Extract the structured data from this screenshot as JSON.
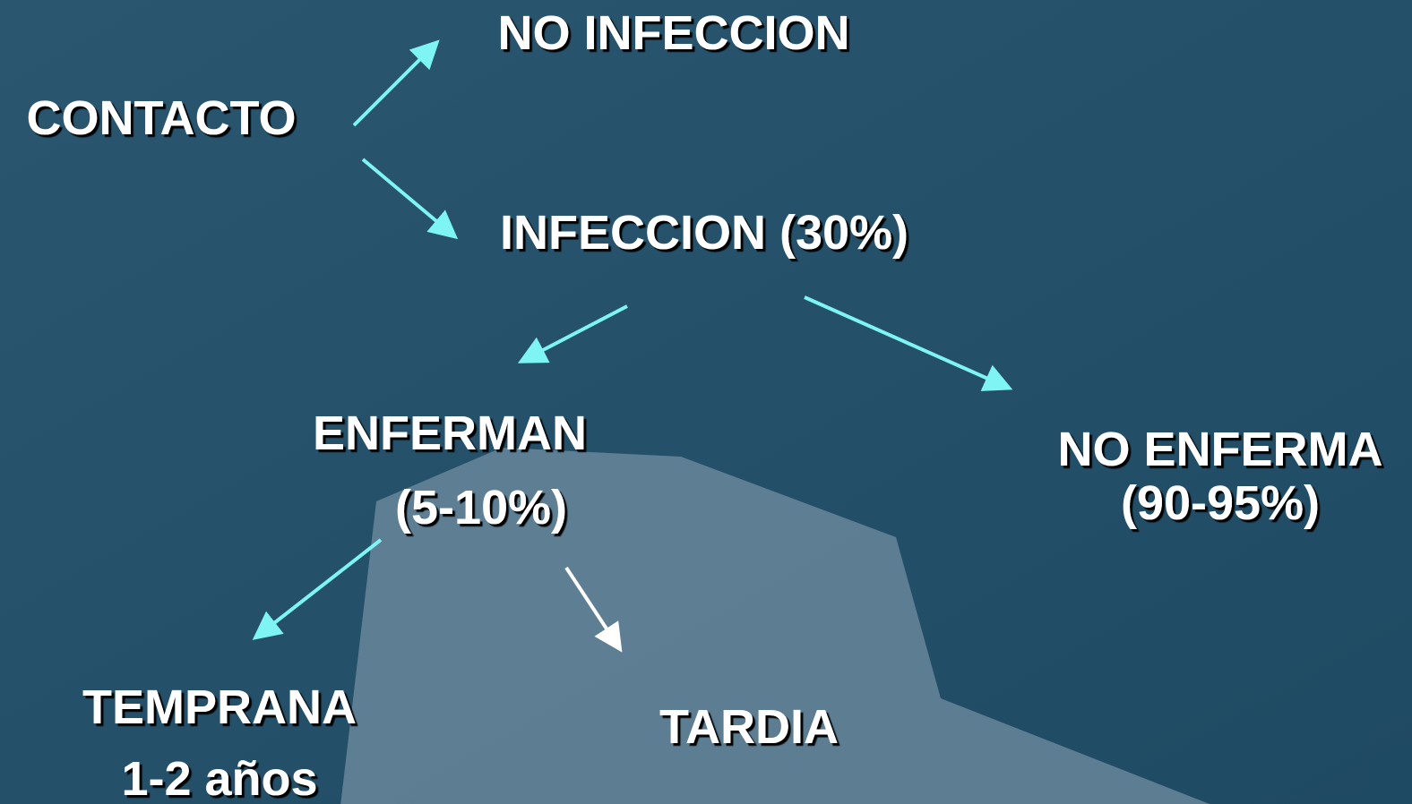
{
  "nodes": [
    {
      "label": "CONTACTO"
    },
    {
      "label": "NO INFECCION"
    },
    {
      "label": "INFECCION (30%)"
    },
    {
      "label": "ENFERMAN"
    },
    {
      "label": "(5-10%)"
    },
    {
      "label": "NO ENFERMA"
    },
    {
      "label": "(90-95%)"
    },
    {
      "label": "TEMPRANA"
    },
    {
      "label": "1-2 años"
    },
    {
      "label": "TARDIA"
    }
  ]
}
